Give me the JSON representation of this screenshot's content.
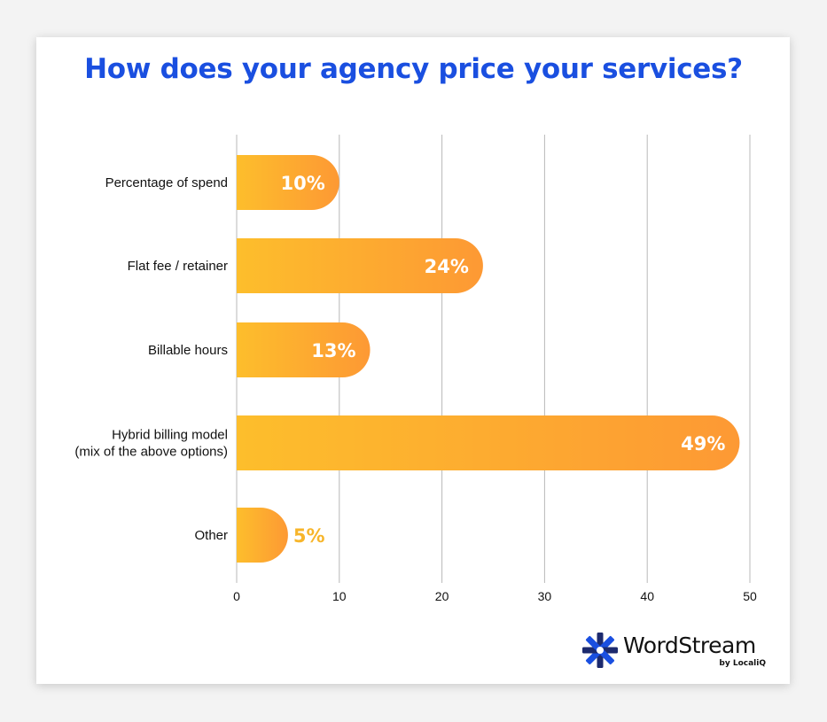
{
  "colors": {
    "title": "#1a4fe0",
    "bar_start": "#fdbe2c",
    "bar_end": "#fd9934",
    "label_inside": "#ffffff",
    "label_outside": "#f7b52a",
    "grid": "#b8b8b8",
    "logo_blue": "#1a4fe0",
    "logo_navy": "#1c2a6e"
  },
  "chart_data": {
    "type": "bar",
    "orientation": "horizontal",
    "title": "How does your agency price your services?",
    "xlabel": "",
    "ylabel": "",
    "categories": [
      "Percentage of spend",
      "Flat fee / retainer",
      "Billable hours",
      "Hybrid billing model\n(mix of the above options)",
      "Other"
    ],
    "values": [
      10,
      24,
      13,
      49,
      5
    ],
    "value_labels": [
      "10%",
      "24%",
      "13%",
      "49%",
      "5%"
    ],
    "xlim": [
      0,
      50
    ],
    "x_ticks": [
      0,
      10,
      20,
      30,
      40,
      50
    ],
    "grid": true
  },
  "branding": {
    "logo_icon": "wordstream-star-icon",
    "name": "WordStream",
    "sub": "by LocaliQ"
  }
}
